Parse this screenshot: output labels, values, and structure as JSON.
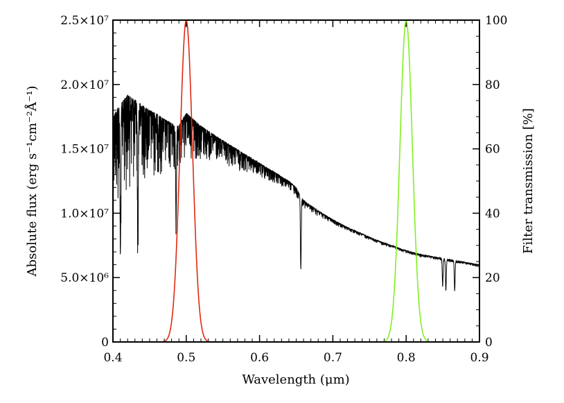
{
  "chart_data": {
    "type": "line",
    "xlabel": "Wavelength (μm)",
    "ylabel_left": "Absolute flux (erg s⁻¹cm⁻²Å⁻¹)",
    "ylabel_right": "Filter transmission [%]",
    "xlim": [
      0.4,
      0.9
    ],
    "ylim_left": [
      0,
      25000000
    ],
    "ylim_right": [
      0,
      100
    ],
    "x_ticks": [
      {
        "value": 0.4,
        "label": "0.4"
      },
      {
        "value": 0.5,
        "label": "0.5"
      },
      {
        "value": 0.6,
        "label": "0.6"
      },
      {
        "value": 0.7,
        "label": "0.7"
      },
      {
        "value": 0.8,
        "label": "0.8"
      },
      {
        "value": 0.9,
        "label": "0.9"
      }
    ],
    "y_left_ticks": [
      {
        "value": 0,
        "label": "0"
      },
      {
        "value": 5000000,
        "label": "5.0×10⁶"
      },
      {
        "value": 10000000,
        "label": "1.0×10⁷"
      },
      {
        "value": 15000000,
        "label": "1.5×10⁷"
      },
      {
        "value": 20000000,
        "label": "2.0×10⁷"
      },
      {
        "value": 25000000,
        "label": "2.5×10⁷"
      }
    ],
    "y_right_ticks": [
      {
        "value": 0,
        "label": "0"
      },
      {
        "value": 20,
        "label": "20"
      },
      {
        "value": 40,
        "label": "40"
      },
      {
        "value": 60,
        "label": "60"
      },
      {
        "value": 80,
        "label": "80"
      },
      {
        "value": 100,
        "label": "100"
      }
    ],
    "series": [
      {
        "axis": "left",
        "color": "#000000",
        "x": [
          0.4,
          0.41,
          0.42,
          0.43,
          0.44,
          0.45,
          0.46,
          0.47,
          0.48,
          0.49,
          0.5,
          0.52,
          0.54,
          0.56,
          0.58,
          0.6,
          0.62,
          0.64,
          0.65,
          0.656,
          0.66,
          0.68,
          0.7,
          0.72,
          0.74,
          0.76,
          0.78,
          0.8,
          0.82,
          0.84,
          0.86,
          0.88,
          0.9
        ],
        "y": [
          17500000,
          18500000,
          19200000,
          18800000,
          18400000,
          18000000,
          17700000,
          17300000,
          17000000,
          16800000,
          17800000,
          16800000,
          16000000,
          15300000,
          14600000,
          13900000,
          13200000,
          12500000,
          12000000,
          11300000,
          11000000,
          10200000,
          9500000,
          8900000,
          8400000,
          7900000,
          7500000,
          7100000,
          6800000,
          6600000,
          6400000,
          6200000,
          6000000
        ]
      },
      {
        "axis": "right",
        "color": "#e02810",
        "center": 0.5,
        "fwhm": 0.02,
        "peak": 100,
        "x_range": [
          0.45,
          0.61
        ]
      },
      {
        "axis": "right",
        "color": "#80f020",
        "center": 0.8,
        "fwhm": 0.02,
        "peak": 100,
        "x_range": [
          0.72,
          0.88
        ]
      }
    ],
    "absorption_lines": [
      {
        "x": 0.4102,
        "depth": 0.62
      },
      {
        "x": 0.434,
        "depth": 0.55
      },
      {
        "x": 0.4861,
        "depth": 0.45
      },
      {
        "x": 0.6563,
        "depth": 0.5
      },
      {
        "x": 0.8498,
        "depth": 0.32
      },
      {
        "x": 0.8542,
        "depth": 0.38
      },
      {
        "x": 0.8662,
        "depth": 0.36
      }
    ]
  }
}
